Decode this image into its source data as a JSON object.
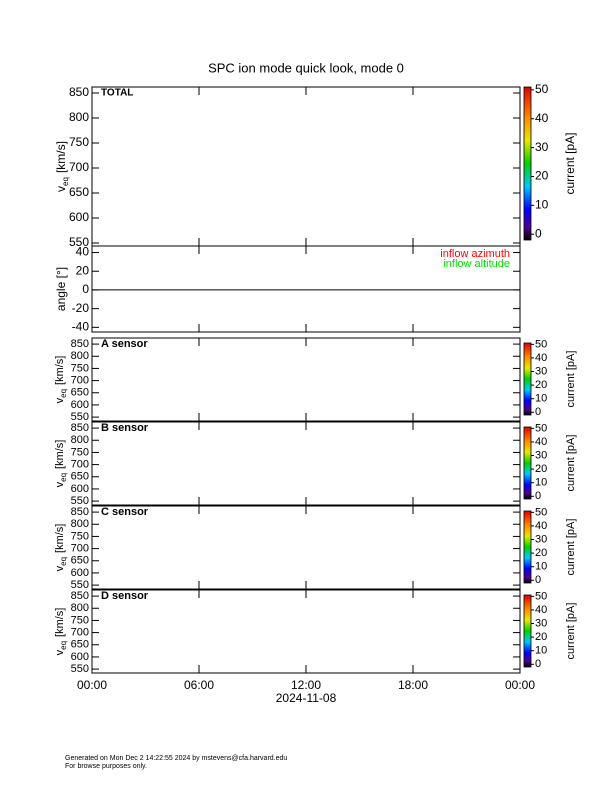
{
  "title": "SPC ion mode quick look, mode 0",
  "chart_data": [
    {
      "type": "spectrogram",
      "label": "TOTAL",
      "ylabel": {
        "text": "v",
        "sub": "eq",
        "unit": "[km/s]"
      },
      "ylim": [
        544,
        862
      ],
      "yticks": [
        550,
        600,
        650,
        700,
        750,
        800,
        850
      ],
      "colorbar": {
        "label": "current [pA]",
        "clim": [
          -2,
          51
        ],
        "ticks": [
          0,
          10,
          20,
          30,
          40,
          50
        ]
      }
    },
    {
      "type": "line",
      "ylabel": {
        "text": "angle [°]"
      },
      "ylim": [
        -45,
        47
      ],
      "yticks": [
        -40,
        -20,
        0,
        20,
        40
      ],
      "zero_line": true,
      "x": [],
      "series": [
        {
          "name": "inflow azimuth",
          "color": "#ff0000",
          "values": []
        },
        {
          "name": "inflow altitude",
          "color": "#00e000",
          "values": []
        }
      ]
    },
    {
      "type": "spectrogram",
      "label": "A sensor",
      "ylabel": {
        "text": "v",
        "sub": "eq",
        "unit": "[km/s]"
      },
      "ylim": [
        534,
        875
      ],
      "yticks": [
        550,
        600,
        650,
        700,
        750,
        800,
        850
      ],
      "colorbar": {
        "label": "current [pA]",
        "clim": [
          -2,
          51
        ],
        "ticks": [
          0,
          10,
          20,
          30,
          40,
          50
        ]
      }
    },
    {
      "type": "spectrogram",
      "label": "B sensor",
      "ylabel": {
        "text": "v",
        "sub": "eq",
        "unit": "[km/s]"
      },
      "ylim": [
        534,
        875
      ],
      "yticks": [
        550,
        600,
        650,
        700,
        750,
        800,
        850
      ],
      "colorbar": {
        "label": "current [pA]",
        "clim": [
          -2,
          51
        ],
        "ticks": [
          0,
          10,
          20,
          30,
          40,
          50
        ]
      }
    },
    {
      "type": "spectrogram",
      "label": "C sensor",
      "ylabel": {
        "text": "v",
        "sub": "eq",
        "unit": "[km/s]"
      },
      "ylim": [
        534,
        875
      ],
      "yticks": [
        550,
        600,
        650,
        700,
        750,
        800,
        850
      ],
      "colorbar": {
        "label": "current [pA]",
        "clim": [
          -2,
          51
        ],
        "ticks": [
          0,
          10,
          20,
          30,
          40,
          50
        ]
      }
    },
    {
      "type": "spectrogram",
      "label": "D sensor",
      "ylabel": {
        "text": "v",
        "sub": "eq",
        "unit": "[km/s]"
      },
      "ylim": [
        534,
        875
      ],
      "yticks": [
        550,
        600,
        650,
        700,
        750,
        800,
        850
      ],
      "colorbar": {
        "label": "current [pA]",
        "clim": [
          -2,
          51
        ],
        "ticks": [
          0,
          10,
          20,
          30,
          40,
          50
        ]
      },
      "xlim": [
        0,
        24
      ],
      "xticks": [
        {
          "value": 0,
          "label": "00:00"
        },
        {
          "value": 6,
          "label": "06:00"
        },
        {
          "value": 12,
          "label": "12:00"
        },
        {
          "value": 18,
          "label": "18:00"
        },
        {
          "value": 24,
          "label": "00:00"
        }
      ],
      "xlabel": "2024-11-08"
    }
  ],
  "footer": [
    "Generated on Mon Dec  2 14:22:55 2024 by mstevens@cfa.harvard.edu",
    "For browse purposes only."
  ]
}
